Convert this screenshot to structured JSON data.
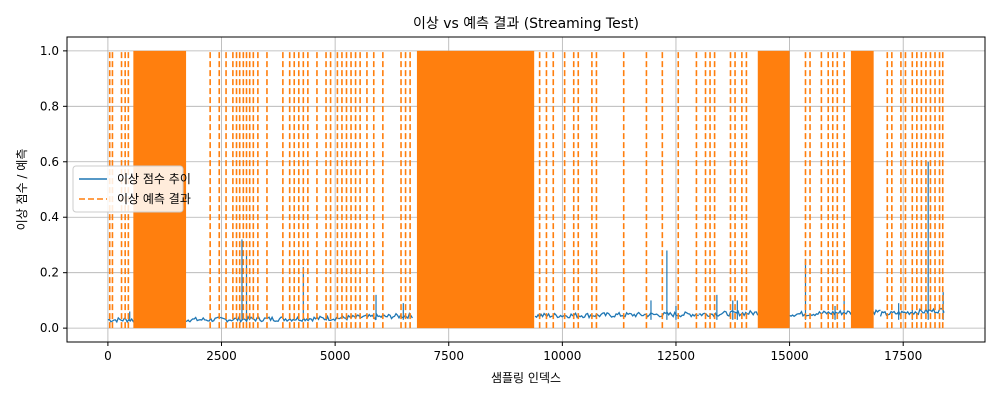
{
  "chart_data": {
    "type": "line",
    "title": "이상 vs 예측 결과 (Streaming Test)",
    "xlabel": "샘플링 인덱스",
    "ylabel": "이상 점수 / 예측",
    "xlim": [
      -900,
      19300
    ],
    "ylim": [
      -0.05,
      1.05
    ],
    "xticks": [
      0,
      2500,
      5000,
      7500,
      10000,
      12500,
      15000,
      17500
    ],
    "xtick_labels": [
      "0",
      "2500",
      "5000",
      "7500",
      "10000",
      "12500",
      "15000",
      "17500"
    ],
    "yticks": [
      0.0,
      0.2,
      0.4,
      0.6,
      0.8,
      1.0
    ],
    "ytick_labels": [
      "0.0",
      "0.2",
      "0.4",
      "0.6",
      "0.8",
      "1.0"
    ],
    "grid": true,
    "legend_position": "center-left",
    "series": [
      {
        "name": "이상 점수 추이",
        "color": "#1f77b4",
        "style": "solid",
        "baseline_segments": [
          {
            "x": [
              0,
              1800
            ],
            "y": [
              0.03,
              0.03
            ]
          },
          {
            "x": [
              1800,
              4800
            ],
            "y": [
              0.03,
              0.035
            ]
          },
          {
            "x": [
              4800,
              6700
            ],
            "y": [
              0.035,
              0.045
            ]
          },
          {
            "x": [
              9400,
              13000
            ],
            "y": [
              0.045,
              0.05
            ]
          },
          {
            "x": [
              13000,
              14300
            ],
            "y": [
              0.05,
              0.055
            ]
          },
          {
            "x": [
              15000,
              17000
            ],
            "y": [
              0.05,
              0.06
            ]
          },
          {
            "x": [
              17000,
              18400
            ],
            "y": [
              0.05,
              0.065
            ]
          }
        ],
        "spikes": [
          {
            "x": 480,
            "y": 0.06
          },
          {
            "x": 2950,
            "y": 0.32
          },
          {
            "x": 3050,
            "y": 0.27
          },
          {
            "x": 4300,
            "y": 0.22
          },
          {
            "x": 5900,
            "y": 0.12
          },
          {
            "x": 6500,
            "y": 0.09
          },
          {
            "x": 11950,
            "y": 0.1
          },
          {
            "x": 12300,
            "y": 0.28
          },
          {
            "x": 12500,
            "y": 0.08
          },
          {
            "x": 13400,
            "y": 0.12
          },
          {
            "x": 13750,
            "y": 0.1
          },
          {
            "x": 13850,
            "y": 0.1
          },
          {
            "x": 15350,
            "y": 0.25
          },
          {
            "x": 16000,
            "y": 0.08
          },
          {
            "x": 16200,
            "y": 0.11
          },
          {
            "x": 17400,
            "y": 0.09
          },
          {
            "x": 17700,
            "y": 0.07
          },
          {
            "x": 18050,
            "y": 0.6
          },
          {
            "x": 18380,
            "y": 0.13
          }
        ]
      },
      {
        "name": "이상 예측 결과",
        "color": "#ff7f0e",
        "style": "dashed",
        "anomaly_blocks": [
          [
            560,
            1720
          ],
          [
            6800,
            9380
          ],
          [
            14300,
            15000
          ],
          [
            16350,
            16850
          ]
        ],
        "anomaly_lines": [
          40,
          100,
          300,
          380,
          450,
          2250,
          2450,
          2600,
          2750,
          2830,
          2900,
          2980,
          3050,
          3120,
          3200,
          3300,
          3500,
          3850,
          4000,
          4100,
          4200,
          4300,
          4400,
          4600,
          4800,
          4900,
          5050,
          5150,
          5250,
          5350,
          5450,
          5550,
          5700,
          5850,
          6050,
          6450,
          6550,
          6650,
          9500,
          9650,
          9800,
          10050,
          10250,
          10350,
          10650,
          10750,
          11350,
          11850,
          12200,
          12550,
          12950,
          13150,
          13250,
          13350,
          13700,
          13800,
          13950,
          14050,
          15350,
          15450,
          15700,
          15850,
          15950,
          16050,
          16200,
          17150,
          17250,
          17450,
          17550,
          17700,
          17800,
          17900,
          18000,
          18100,
          18200,
          18300,
          18370
        ]
      }
    ]
  }
}
